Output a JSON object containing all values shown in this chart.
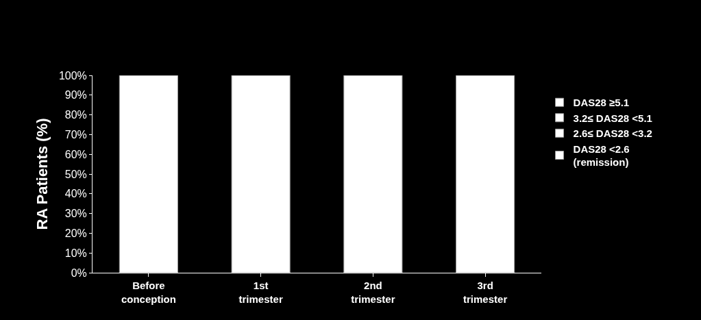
{
  "chart_data": {
    "type": "bar",
    "ylabel": "RA Patients (%)",
    "categories": [
      "Before\nconception",
      "1st\ntrimester",
      "2nd\ntrimester",
      "3rd\ntrimester"
    ],
    "series": [
      {
        "name": "DAS28 ≥5.1",
        "color": "#ffffff",
        "values": [
          null,
          null,
          null,
          null
        ]
      },
      {
        "name": "3.2≤ DAS28 <5.1",
        "color": "#ffffff",
        "values": [
          null,
          null,
          null,
          null
        ]
      },
      {
        "name": "2.6≤ DAS28 <3.2",
        "color": "#ffffff",
        "values": [
          null,
          null,
          null,
          null
        ]
      },
      {
        "name": "DAS28 <2.6\n(remission)",
        "color": "#ffffff",
        "values": [
          null,
          null,
          null,
          null
        ]
      },
      {
        "color": "#ffffff",
        "values": [
          100,
          100,
          100,
          100
        ]
      }
    ],
    "ylim": [
      0,
      100
    ],
    "yticks": [
      {
        "value": 0,
        "label": "0%"
      },
      {
        "value": 10,
        "label": "10%"
      },
      {
        "value": 20,
        "label": "20%"
      },
      {
        "value": 30,
        "label": "30%"
      },
      {
        "value": 40,
        "label": "40%"
      },
      {
        "value": 50,
        "label": "50%"
      },
      {
        "value": 60,
        "label": "60%"
      },
      {
        "value": 70,
        "label": "70%"
      },
      {
        "value": 80,
        "label": "80%"
      },
      {
        "value": 90,
        "label": "90%"
      },
      {
        "value": 100,
        "label": "100%"
      }
    ],
    "grid": false,
    "legend": "right"
  }
}
